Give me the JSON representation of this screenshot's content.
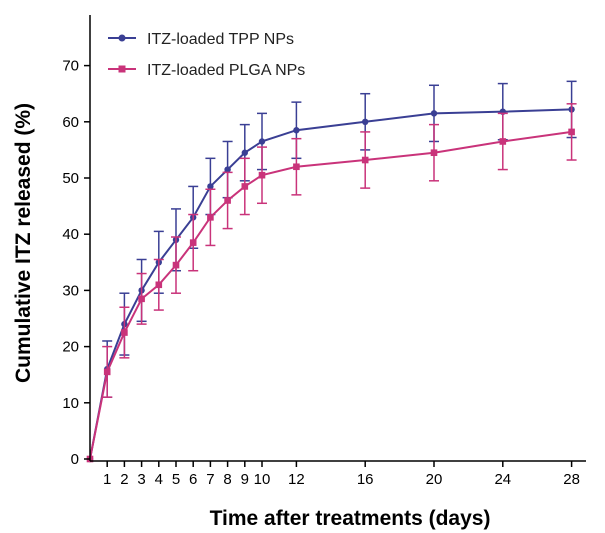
{
  "chart_data": {
    "type": "line",
    "xlabel": "Time after treatments (days)",
    "ylabel": "Cumulative ITZ released (%)",
    "x": [
      0,
      1,
      2,
      3,
      4,
      5,
      6,
      7,
      8,
      9,
      10,
      12,
      16,
      20,
      24,
      28
    ],
    "x_ticks": [
      1,
      2,
      3,
      4,
      5,
      6,
      7,
      8,
      9,
      10,
      12,
      16,
      20,
      24,
      28
    ],
    "y_ticks": [
      0,
      10,
      20,
      30,
      40,
      50,
      60,
      70
    ],
    "ylim": [
      0,
      70
    ],
    "legend_position": "top-left",
    "series": [
      {
        "name": "ITZ-loaded TPP NPs",
        "color": "#3a3f94",
        "values": [
          0,
          16,
          24,
          30,
          35,
          39,
          43,
          48.5,
          51.5,
          54.5,
          56.5,
          58.5,
          60,
          61.5,
          61.8,
          62.2
        ],
        "errors": [
          0,
          5,
          5.5,
          5.5,
          5.5,
          5.5,
          5.5,
          5,
          5,
          5,
          5,
          5,
          5,
          5,
          5,
          5
        ]
      },
      {
        "name": "ITZ-loaded PLGA NPs",
        "color": "#c9337a",
        "values": [
          0,
          15.5,
          22.5,
          28.5,
          31,
          34.5,
          38.5,
          43,
          46,
          48.5,
          50.5,
          52,
          53.2,
          54.5,
          56.5,
          58.2
        ],
        "errors": [
          0,
          4.5,
          4.5,
          4.5,
          4.5,
          5,
          5,
          5,
          5,
          5,
          5,
          5,
          5,
          5,
          5,
          5
        ]
      }
    ]
  }
}
